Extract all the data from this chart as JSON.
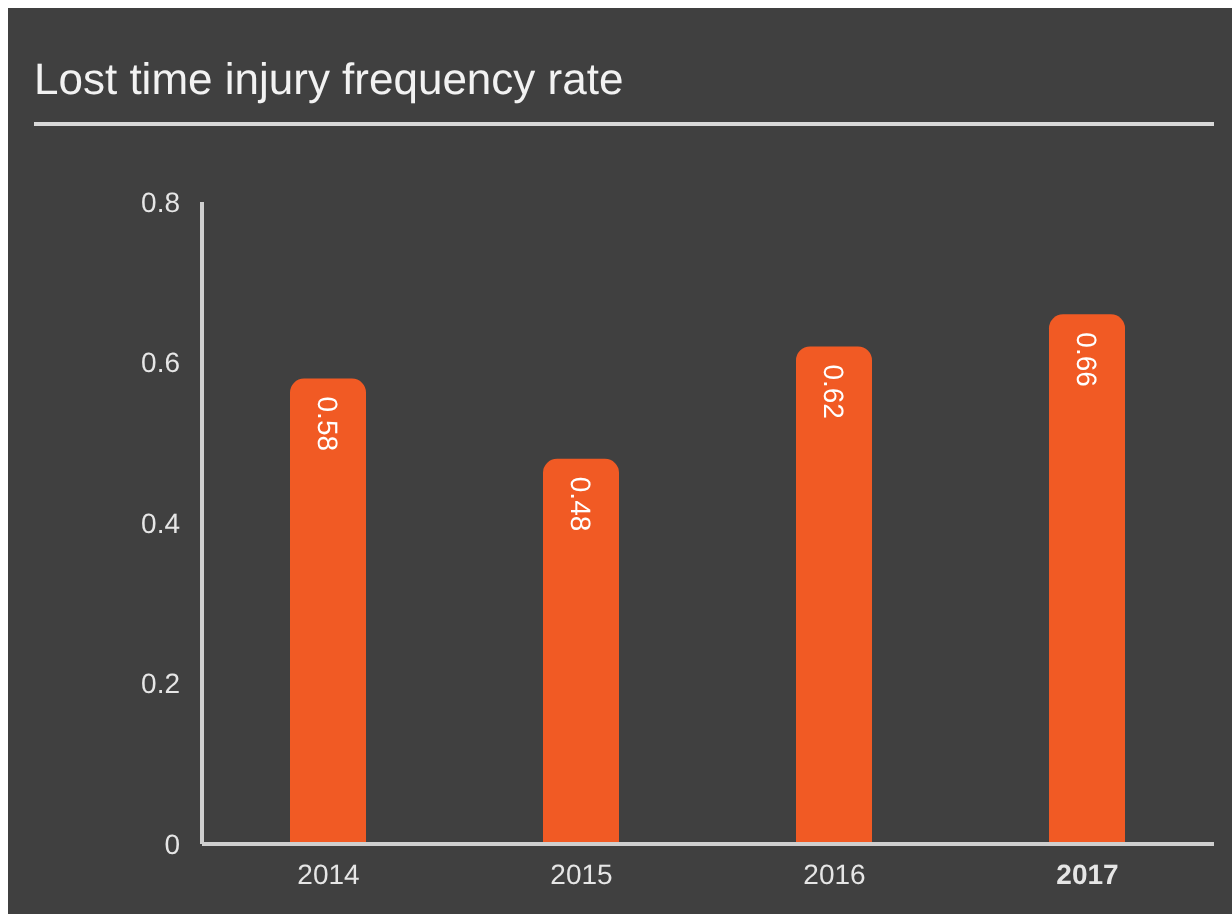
{
  "chart_data": {
    "type": "bar",
    "title": "Lost time injury frequency rate",
    "categories": [
      "2014",
      "2015",
      "2016",
      "2017"
    ],
    "values": [
      0.58,
      0.48,
      0.62,
      0.66
    ],
    "color": "#f15a24",
    "ylim": [
      0,
      0.8
    ],
    "yticks": [
      0,
      0.2,
      0.4,
      0.6,
      0.8
    ],
    "data_labels": true
  }
}
